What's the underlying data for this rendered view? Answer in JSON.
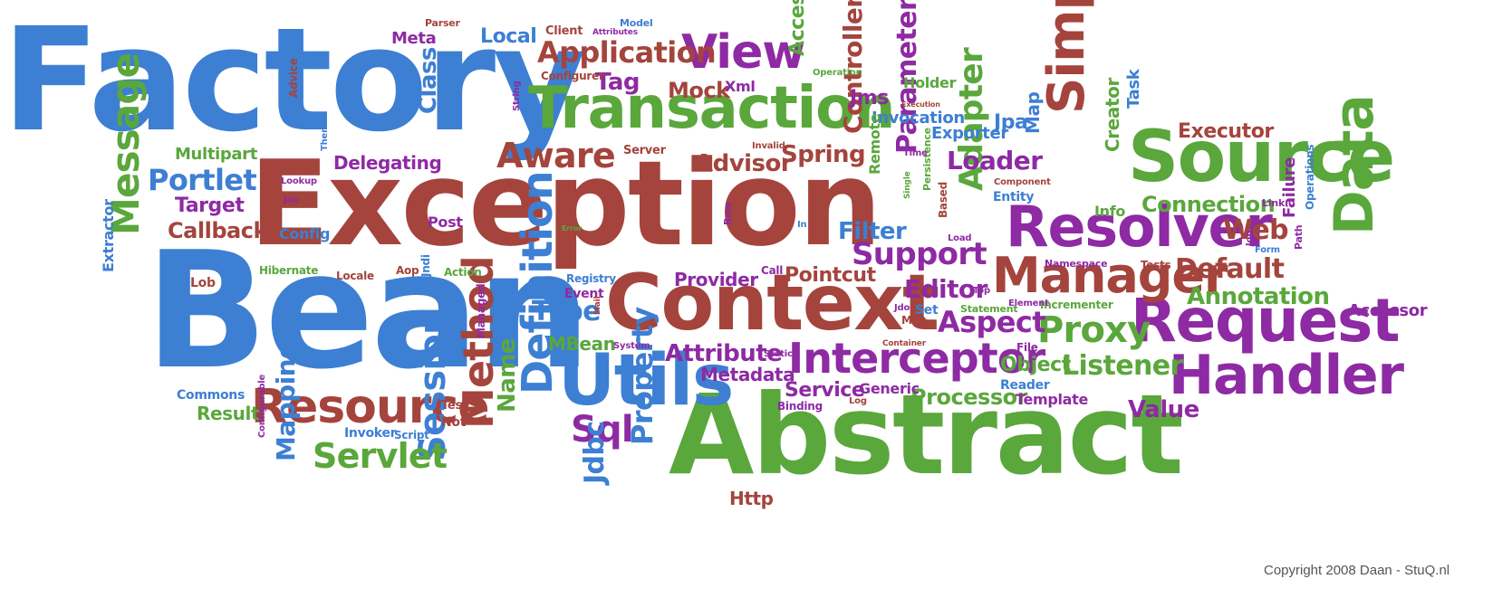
{
  "copyright": "Copyright 2008 Daan - StuQ.nl",
  "palette": {
    "blue": "#3d7fd3",
    "red": "#a4443d",
    "green": "#5aa73c",
    "purple": "#8e2aa3",
    "background": "#ffffff"
  },
  "words": [
    "Factory",
    "Exception",
    "Bean",
    "Abstract",
    "Context",
    "Transaction",
    "Source",
    "Resolver",
    "Request",
    "Handler",
    "Manager",
    "Utils",
    "Resource",
    "Interceptor",
    "Simple",
    "Data",
    "Method",
    "Definition",
    "Session",
    "Message",
    "View",
    "Aware",
    "Proxy",
    "Servlet",
    "Application",
    "Support",
    "Aspect",
    "Sql",
    "Listener",
    "Portlet",
    "Type",
    "Default",
    "Annotation",
    "Adapter",
    "Property",
    "Loader",
    "Connection",
    "Editor",
    "Parameter",
    "Controller",
    "Class",
    "Web",
    "Processor",
    "Advisor",
    "Spring",
    "Filter",
    "Callback",
    "Target",
    "Local",
    "Tag",
    "Mock",
    "Attribute",
    "Object",
    "Value",
    "Executor",
    "Jdbc",
    "Mapping",
    "Name",
    "Delegating",
    "Pointcut",
    "Service",
    "Metadata",
    "MBean",
    "Accessor",
    "Access",
    "Provider",
    "Jms",
    "Invocation",
    "Exporter",
    "Jpa",
    "Map",
    "Creator",
    "Task",
    "Result",
    "Multipart",
    "Meta",
    "Config",
    "Post",
    "Http",
    "Holder",
    "Xml",
    "Entity",
    "Info",
    "Failure",
    "Template",
    "Reader",
    "Generic",
    "Extractor",
    "Remote",
    "Event",
    "Commons",
    "Hibernate",
    "Lob",
    "Invoker",
    "Script",
    "Jndi",
    "Action",
    "Locale",
    "Aop",
    "Url",
    "Managed",
    "Test",
    "Not",
    "Configurable",
    "Client",
    "Parser",
    "Model",
    "Attributes",
    "Configurer",
    "Advice",
    "String",
    "Theme",
    "Lookup",
    "Jax",
    "Server",
    "Invalid",
    "Error",
    "Registry",
    "Mail",
    "System",
    "Call",
    "Static",
    "Binding",
    "Log",
    "Container",
    "Max",
    "Jdo",
    "Set",
    "Top",
    "Statement",
    "Incrementer",
    "Element",
    "Component",
    "Namespace",
    "Tests",
    "Form",
    "Path",
    "Job",
    "Link",
    "Operations",
    "File",
    "Row",
    "In",
    "Load",
    "Based",
    "Persistence",
    "Single",
    "Time",
    "Execution",
    "Operation"
  ]
}
